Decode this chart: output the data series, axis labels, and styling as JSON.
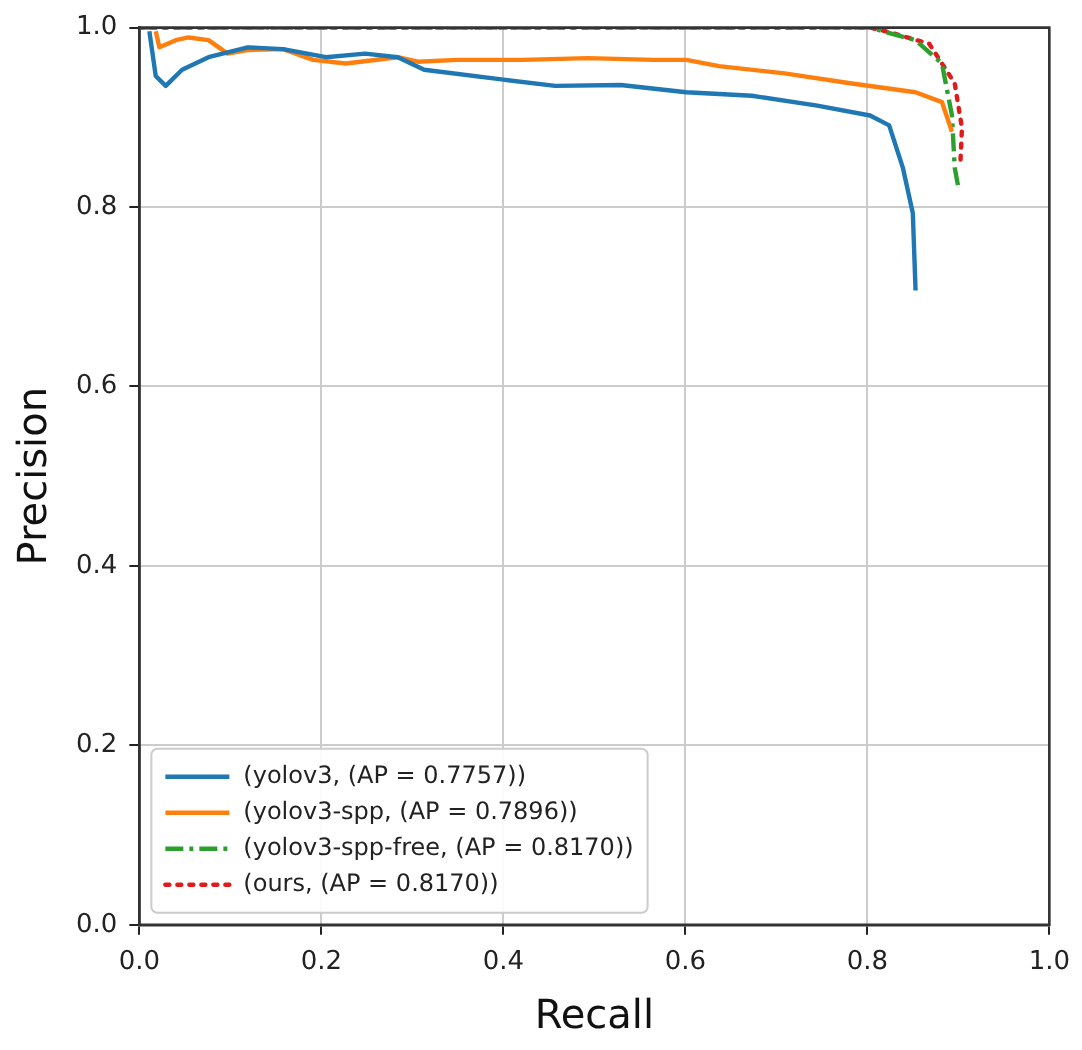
{
  "chart_data": {
    "type": "line",
    "xlabel": "Recall",
    "ylabel": "Precision",
    "xlim": [
      0,
      1
    ],
    "ylim": [
      0,
      1
    ],
    "xticks": [
      {
        "value": 0,
        "label": "0.0"
      },
      0.2,
      0.4,
      0.6,
      0.8,
      {
        "value": 1,
        "label": "1.0"
      }
    ],
    "yticks": [
      {
        "value": 0,
        "label": "0.0"
      },
      0.2,
      0.4,
      0.6,
      0.8,
      {
        "value": 1,
        "label": "1.0"
      }
    ],
    "grid": true,
    "legend": "bottom left",
    "marker": "none",
    "series": [
      {
        "name": "(yolov3, (AP = 0.7757))",
        "color": "#1f77b4",
        "line_style": "solid",
        "x": [
          0.011,
          0.018,
          0.029,
          0.047,
          0.076,
          0.119,
          0.158,
          0.205,
          0.248,
          0.284,
          0.313,
          0.4,
          0.457,
          0.529,
          0.601,
          0.673,
          0.745,
          0.803,
          0.824,
          0.839,
          0.85,
          0.853
        ],
        "values": [
          0.996,
          0.946,
          0.935,
          0.953,
          0.967,
          0.978,
          0.976,
          0.967,
          0.971,
          0.967,
          0.953,
          0.942,
          0.935,
          0.936,
          0.928,
          0.924,
          0.913,
          0.902,
          0.891,
          0.844,
          0.793,
          0.707
        ]
      },
      {
        "name": "(yolov3-spp, (AP = 0.7896))",
        "color": "#ff7f0e",
        "line_style": "solid",
        "x": [
          0.018,
          0.022,
          0.04,
          0.054,
          0.076,
          0.097,
          0.119,
          0.158,
          0.191,
          0.227,
          0.284,
          0.306,
          0.349,
          0.421,
          0.493,
          0.565,
          0.601,
          0.637,
          0.709,
          0.781,
          0.853,
          0.882,
          0.893
        ],
        "values": [
          0.996,
          0.978,
          0.986,
          0.989,
          0.986,
          0.971,
          0.975,
          0.976,
          0.964,
          0.96,
          0.967,
          0.962,
          0.964,
          0.964,
          0.966,
          0.964,
          0.964,
          0.957,
          0.949,
          0.938,
          0.928,
          0.917,
          0.884
        ]
      },
      {
        "name": "(yolov3-spp-free, (AP = 0.8170))",
        "color": "#2ca02c",
        "line_style": "dashdot",
        "x": [
          0,
          0.2,
          0.4,
          0.6,
          0.803,
          0.817,
          0.853,
          0.882,
          0.893,
          0.896,
          0.9
        ],
        "values": [
          1,
          1,
          1,
          1,
          1,
          0.996,
          0.986,
          0.96,
          0.902,
          0.844,
          0.822
        ]
      },
      {
        "name": "(ours, (AP = 0.8170))",
        "color": "#e31a1c",
        "line_style": "dotted",
        "x": [
          0,
          0.2,
          0.4,
          0.6,
          0.803,
          0.824,
          0.868,
          0.896,
          0.904,
          0.902
        ],
        "values": [
          1,
          1,
          1,
          1,
          1,
          0.995,
          0.982,
          0.938,
          0.888,
          0.844
        ]
      }
    ]
  }
}
